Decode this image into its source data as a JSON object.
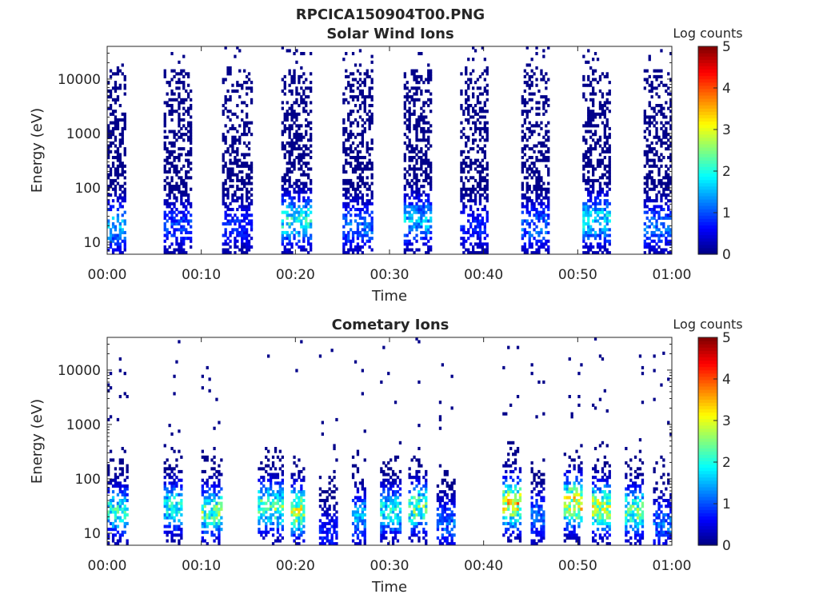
{
  "figure_title": "RPCICA150904T00.PNG",
  "chart_data": [
    {
      "type": "heatmap",
      "title": "Solar Wind Ions",
      "xlabel": "Time",
      "ylabel": "Energy (eV)",
      "x_tick_labels": [
        "00:00",
        "00:10",
        "00:20",
        "00:30",
        "00:40",
        "00:50",
        "01:00"
      ],
      "x_range_minutes": [
        0,
        60
      ],
      "y_scale": "log",
      "y_range_eV": [
        6,
        40000
      ],
      "y_tick_values": [
        10,
        100,
        1000,
        10000
      ],
      "y_tick_labels": [
        "10",
        "100",
        "1000",
        "10000"
      ],
      "colorbar": {
        "label": "Log counts",
        "range": [
          0,
          5
        ],
        "tick_labels": [
          "0",
          "1",
          "2",
          "3",
          "4",
          "5"
        ],
        "colormap": "jet"
      },
      "activity_bursts": [
        {
          "start_min": 0.0,
          "end_min": 1.8,
          "peak_energy_eV": 20,
          "peak_log_counts": 2.0
        },
        {
          "start_min": 6.0,
          "end_min": 9.0,
          "peak_energy_eV": 20,
          "peak_log_counts": 1.2
        },
        {
          "start_min": 12.2,
          "end_min": 15.2,
          "peak_energy_eV": 20,
          "peak_log_counts": 1.0
        },
        {
          "start_min": 18.5,
          "end_min": 21.5,
          "peak_energy_eV": 25,
          "peak_log_counts": 2.5
        },
        {
          "start_min": 25.0,
          "end_min": 28.0,
          "peak_energy_eV": 20,
          "peak_log_counts": 1.5
        },
        {
          "start_min": 31.5,
          "end_min": 34.5,
          "peak_energy_eV": 25,
          "peak_log_counts": 2.0
        },
        {
          "start_min": 37.5,
          "end_min": 40.5,
          "peak_energy_eV": 20,
          "peak_log_counts": 1.0
        },
        {
          "start_min": 44.0,
          "end_min": 47.0,
          "peak_energy_eV": 20,
          "peak_log_counts": 1.5
        },
        {
          "start_min": 50.5,
          "end_min": 53.5,
          "peak_energy_eV": 25,
          "peak_log_counts": 2.3
        },
        {
          "start_min": 57.0,
          "end_min": 60.0,
          "peak_energy_eV": 20,
          "peak_log_counts": 1.5
        }
      ]
    },
    {
      "type": "heatmap",
      "title": "Cometary Ions",
      "xlabel": "Time",
      "ylabel": "Energy (eV)",
      "x_tick_labels": [
        "00:00",
        "00:10",
        "00:20",
        "00:30",
        "00:40",
        "00:50",
        "01:00"
      ],
      "x_range_minutes": [
        0,
        60
      ],
      "y_scale": "log",
      "y_range_eV": [
        6,
        40000
      ],
      "y_tick_values": [
        10,
        100,
        1000,
        10000
      ],
      "y_tick_labels": [
        "10",
        "100",
        "1000",
        "10000"
      ],
      "colorbar": {
        "label": "Log counts",
        "range": [
          0,
          5
        ],
        "tick_labels": [
          "0",
          "1",
          "2",
          "3",
          "4",
          "5"
        ],
        "colormap": "jet"
      },
      "activity_bursts": [
        {
          "start_min": 0.0,
          "end_min": 2.0,
          "peak_energy_eV": 25,
          "peak_log_counts": 2.5
        },
        {
          "start_min": 6.0,
          "end_min": 8.0,
          "peak_energy_eV": 30,
          "peak_log_counts": 2.5
        },
        {
          "start_min": 10.0,
          "end_min": 12.0,
          "peak_energy_eV": 25,
          "peak_log_counts": 3.0
        },
        {
          "start_min": 16.0,
          "end_min": 18.5,
          "peak_energy_eV": 30,
          "peak_log_counts": 3.0
        },
        {
          "start_min": 19.5,
          "end_min": 21.0,
          "peak_energy_eV": 25,
          "peak_log_counts": 3.5
        },
        {
          "start_min": 22.5,
          "end_min": 24.5,
          "peak_energy_eV": 10,
          "peak_log_counts": 1.0
        },
        {
          "start_min": 26.0,
          "end_min": 27.5,
          "peak_energy_eV": 20,
          "peak_log_counts": 2.0
        },
        {
          "start_min": 29.0,
          "end_min": 31.0,
          "peak_energy_eV": 25,
          "peak_log_counts": 2.5
        },
        {
          "start_min": 32.0,
          "end_min": 34.0,
          "peak_energy_eV": 30,
          "peak_log_counts": 3.0
        },
        {
          "start_min": 35.0,
          "end_min": 37.0,
          "peak_energy_eV": 15,
          "peak_log_counts": 1.5
        },
        {
          "start_min": 42.0,
          "end_min": 44.0,
          "peak_energy_eV": 35,
          "peak_log_counts": 4.0
        },
        {
          "start_min": 45.0,
          "end_min": 46.5,
          "peak_energy_eV": 20,
          "peak_log_counts": 1.5
        },
        {
          "start_min": 48.5,
          "end_min": 50.5,
          "peak_energy_eV": 35,
          "peak_log_counts": 4.0
        },
        {
          "start_min": 51.5,
          "end_min": 53.5,
          "peak_energy_eV": 30,
          "peak_log_counts": 3.5
        },
        {
          "start_min": 55.0,
          "end_min": 57.0,
          "peak_energy_eV": 25,
          "peak_log_counts": 3.0
        },
        {
          "start_min": 58.0,
          "end_min": 60.0,
          "peak_energy_eV": 15,
          "peak_log_counts": 1.5
        }
      ]
    }
  ]
}
